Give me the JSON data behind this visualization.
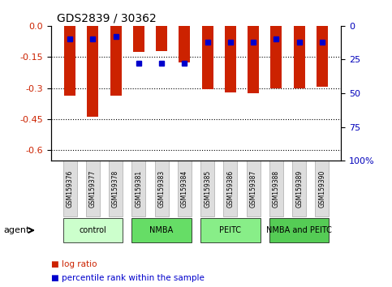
{
  "title": "GDS2839 / 30362",
  "samples": [
    "GSM159376",
    "GSM159377",
    "GSM159378",
    "GSM159381",
    "GSM159383",
    "GSM159384",
    "GSM159385",
    "GSM159386",
    "GSM159387",
    "GSM159388",
    "GSM159389",
    "GSM159390"
  ],
  "log_ratios": [
    -0.335,
    -0.44,
    -0.335,
    -0.125,
    -0.12,
    -0.175,
    -0.305,
    -0.32,
    -0.325,
    -0.3,
    -0.3,
    -0.295
  ],
  "percentile_ranks": [
    10,
    10,
    8,
    28,
    28,
    28,
    12,
    12,
    12,
    10,
    12,
    12
  ],
  "groups": [
    {
      "label": "control",
      "indices": [
        0,
        1,
        2
      ],
      "color": "#ccffcc"
    },
    {
      "label": "NMBA",
      "indices": [
        3,
        4,
        5
      ],
      "color": "#66dd66"
    },
    {
      "label": "PEITC",
      "indices": [
        6,
        7,
        8
      ],
      "color": "#88ee88"
    },
    {
      "label": "NMBA and PEITC",
      "indices": [
        9,
        10,
        11
      ],
      "color": "#55cc55"
    }
  ],
  "ylim_left": [
    -0.65,
    0.0
  ],
  "ylim_right": [
    0,
    100
  ],
  "yticks_left": [
    -0.6,
    -0.45,
    -0.3,
    -0.15,
    0.0
  ],
  "yticks_right": [
    0,
    25,
    50,
    75,
    100
  ],
  "bar_color": "#cc2200",
  "dot_color": "#0000cc",
  "bar_width": 0.5,
  "legend_items": [
    {
      "label": "log ratio",
      "color": "#cc2200"
    },
    {
      "label": "percentile rank within the sample",
      "color": "#0000cc"
    }
  ],
  "agent_label": "agent",
  "background_color": "#ffffff",
  "tick_label_color_left": "#cc2200",
  "tick_label_color_right": "#0000bb",
  "sample_box_color": "#dddddd",
  "sample_box_edge": "#aaaaaa"
}
